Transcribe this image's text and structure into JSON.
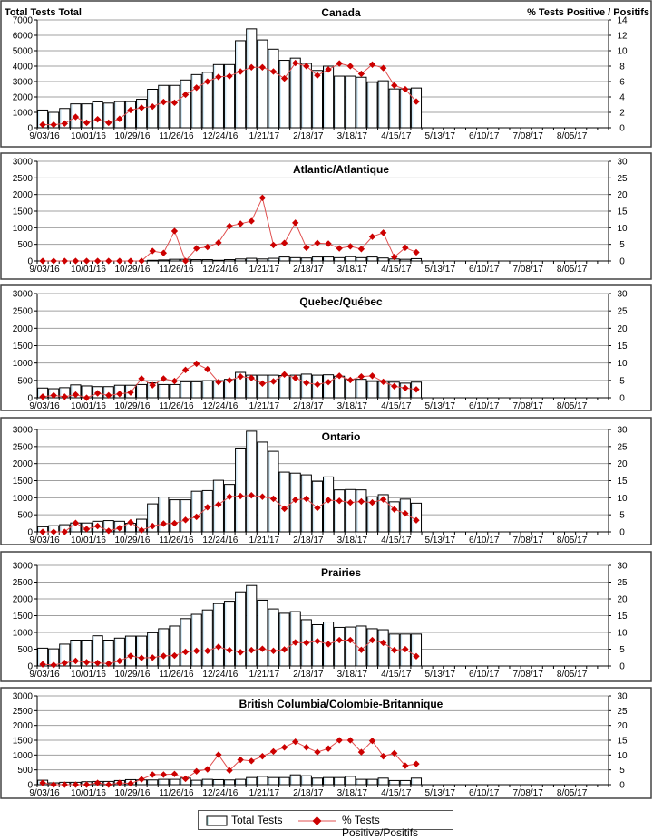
{
  "x_tick_labels": [
    "9/03/16",
    "10/01/16",
    "10/29/16",
    "11/26/16",
    "12/24/16",
    "1/21/17",
    "2/18/17",
    "3/18/17",
    "4/15/17",
    "5/13/17",
    "6/10/17",
    "7/08/17",
    "8/05/17"
  ],
  "legend": {
    "bars": "Total Tests",
    "line": "% Tests Positive/Positifs"
  },
  "colors": {
    "bar_fill": "#ffffff",
    "bar_edge": "#000000",
    "bar_shadow": "#cfe8f5",
    "line": "#e05050",
    "marker": "#cc0000",
    "grid": "#a0a0a0"
  },
  "chart_data": [
    {
      "type": "bar+line",
      "title": "Canada",
      "ylabel": "Total Tests Total",
      "y2label": "% Tests Positive / Positifs",
      "ylim": [
        0,
        7000
      ],
      "y2lim": [
        0,
        14
      ],
      "yticks": [
        "0",
        "1000",
        "2000",
        "3000",
        "4000",
        "5000",
        "6000",
        "7000"
      ],
      "y2ticks": [
        "0",
        "2",
        "4",
        "6",
        "8",
        "10",
        "12",
        "14"
      ],
      "total_tests": [
        1150,
        1000,
        1250,
        1550,
        1550,
        1680,
        1600,
        1700,
        1700,
        1850,
        2500,
        2750,
        2750,
        3100,
        3450,
        3600,
        4100,
        4100,
        5650,
        6420,
        5700,
        5100,
        4380,
        4520,
        4180,
        3720,
        4000,
        3350,
        3350,
        3280,
        2950,
        3050,
        2520,
        2520,
        2580
      ],
      "pct_positive": [
        0.4,
        0.4,
        0.55,
        1.4,
        0.65,
        1.1,
        0.65,
        1.15,
        2.3,
        2.6,
        2.75,
        3.35,
        3.25,
        4.3,
        5.2,
        6.0,
        6.6,
        6.7,
        7.3,
        7.85,
        7.85,
        7.3,
        6.4,
        8.4,
        8.0,
        6.8,
        7.55,
        8.35,
        8.0,
        7.0,
        8.2,
        7.75,
        5.5,
        5.0,
        3.4
      ]
    },
    {
      "type": "bar+line",
      "title": "Atlantic/Atlantique",
      "ylim": [
        0,
        3000
      ],
      "y2lim": [
        0,
        30
      ],
      "yticks": [
        "0",
        "500",
        "1000",
        "1500",
        "2000",
        "2500",
        "3000"
      ],
      "y2ticks": [
        "0",
        "5",
        "10",
        "15",
        "20",
        "25",
        "30"
      ],
      "total_tests": [
        0,
        0,
        0,
        0,
        0,
        0,
        0,
        0,
        0,
        0,
        20,
        30,
        50,
        50,
        40,
        40,
        20,
        40,
        60,
        80,
        60,
        80,
        120,
        100,
        90,
        120,
        120,
        100,
        130,
        100,
        120,
        90,
        60,
        50,
        70
      ],
      "pct_positive": [
        0,
        0,
        0,
        0,
        0,
        0,
        0,
        0,
        0,
        0,
        3,
        2.4,
        9,
        0,
        3.8,
        4.2,
        5.5,
        10.5,
        11.2,
        12,
        19,
        4.8,
        5.4,
        11.5,
        4,
        5.4,
        5.2,
        3.8,
        4.4,
        3.6,
        7.3,
        8.5,
        1.2,
        4,
        2.6
      ]
    },
    {
      "type": "bar+line",
      "title": "Quebec/Québec",
      "ylim": [
        0,
        3000
      ],
      "y2lim": [
        0,
        30
      ],
      "yticks": [
        "0",
        "500",
        "1000",
        "1500",
        "2000",
        "2500",
        "3000"
      ],
      "y2ticks": [
        "0",
        "5",
        "10",
        "15",
        "20",
        "25",
        "30"
      ],
      "total_tests": [
        280,
        260,
        290,
        370,
        340,
        320,
        320,
        360,
        360,
        380,
        430,
        380,
        380,
        460,
        460,
        490,
        490,
        530,
        730,
        650,
        650,
        650,
        640,
        650,
        680,
        650,
        660,
        620,
        530,
        530,
        470,
        470,
        450,
        420,
        450
      ],
      "pct_positive": [
        0.3,
        0.7,
        0.3,
        0.9,
        0,
        1.3,
        0.7,
        1.1,
        1.5,
        5.5,
        3.6,
        5.5,
        4.8,
        8,
        9.8,
        8.2,
        4.5,
        5,
        6.1,
        5.7,
        4.1,
        4.7,
        6.7,
        5.7,
        4.3,
        3.8,
        4.5,
        6.3,
        5.1,
        6.1,
        6.3,
        4.6,
        3.3,
        2.8,
        2.4
      ]
    },
    {
      "type": "bar+line",
      "title": "Ontario",
      "ylim": [
        0,
        3000
      ],
      "y2lim": [
        0,
        30
      ],
      "yticks": [
        "0",
        "500",
        "1000",
        "1500",
        "2000",
        "2500",
        "3000"
      ],
      "y2ticks": [
        "0",
        "5",
        "10",
        "15",
        "20",
        "25",
        "30"
      ],
      "total_tests": [
        150,
        180,
        210,
        260,
        260,
        310,
        330,
        310,
        250,
        370,
        820,
        1020,
        940,
        940,
        1190,
        1210,
        1510,
        1390,
        2430,
        2950,
        2630,
        2360,
        1750,
        1720,
        1670,
        1480,
        1610,
        1230,
        1240,
        1230,
        1030,
        1090,
        880,
        960,
        840
      ],
      "pct_positive": [
        0,
        0,
        0,
        2.6,
        0.8,
        1.7,
        0.3,
        1.1,
        2.8,
        0.5,
        1.7,
        2.4,
        2.5,
        3.5,
        4.4,
        7.2,
        8,
        10.3,
        10.5,
        10.7,
        10.3,
        9.7,
        6.8,
        9.4,
        9.7,
        7,
        9.3,
        9.1,
        8.6,
        8.9,
        8.6,
        9.5,
        6.6,
        5.4,
        3.4
      ]
    },
    {
      "type": "bar+line",
      "title": "Prairies",
      "ylim": [
        0,
        3000
      ],
      "y2lim": [
        0,
        30
      ],
      "yticks": [
        "0",
        "500",
        "1000",
        "1500",
        "2000",
        "2500",
        "3000"
      ],
      "y2ticks": [
        "0",
        "5",
        "10",
        "15",
        "20",
        "25",
        "30"
      ],
      "total_tests": [
        530,
        510,
        650,
        770,
        770,
        900,
        770,
        830,
        890,
        890,
        990,
        1110,
        1190,
        1410,
        1540,
        1670,
        1860,
        1930,
        2210,
        2400,
        1960,
        1700,
        1570,
        1620,
        1380,
        1230,
        1310,
        1150,
        1160,
        1190,
        1110,
        1080,
        950,
        950,
        950
      ],
      "pct_positive": [
        0.5,
        0.3,
        0.9,
        1.5,
        1.1,
        0.9,
        0.7,
        1.5,
        3,
        2.4,
        2.5,
        3,
        3.1,
        4.2,
        4.5,
        4.5,
        5.7,
        4.7,
        4.1,
        4.7,
        5.1,
        4.5,
        4.9,
        7,
        6.9,
        7.4,
        6.5,
        7.7,
        7.7,
        4.8,
        7.7,
        6.9,
        4.7,
        5,
        2.9
      ]
    },
    {
      "type": "bar+line",
      "title": "British Columbia/Colombie-Britannique",
      "ylim": [
        0,
        3000
      ],
      "y2lim": [
        0,
        30
      ],
      "yticks": [
        "0",
        "500",
        "1000",
        "1500",
        "2000",
        "2500",
        "3000"
      ],
      "y2ticks": [
        "0",
        "5",
        "10",
        "15",
        "20",
        "25",
        "30"
      ],
      "total_tests": [
        150,
        60,
        80,
        80,
        100,
        110,
        110,
        140,
        170,
        160,
        160,
        180,
        180,
        220,
        150,
        180,
        170,
        160,
        180,
        240,
        280,
        240,
        240,
        330,
        300,
        220,
        240,
        240,
        280,
        180,
        180,
        220,
        140,
        140,
        220
      ],
      "pct_positive": [
        0.6,
        0,
        0,
        0,
        0,
        0.6,
        0,
        0.6,
        0.4,
        1.8,
        3.4,
        3.4,
        3.6,
        2,
        4.5,
        5.2,
        10.1,
        4.8,
        8.4,
        8,
        9.6,
        11.2,
        12.6,
        14.5,
        12.6,
        11,
        12.2,
        15,
        15,
        11,
        14.8,
        9.6,
        10.6,
        6.4,
        7
      ]
    }
  ]
}
